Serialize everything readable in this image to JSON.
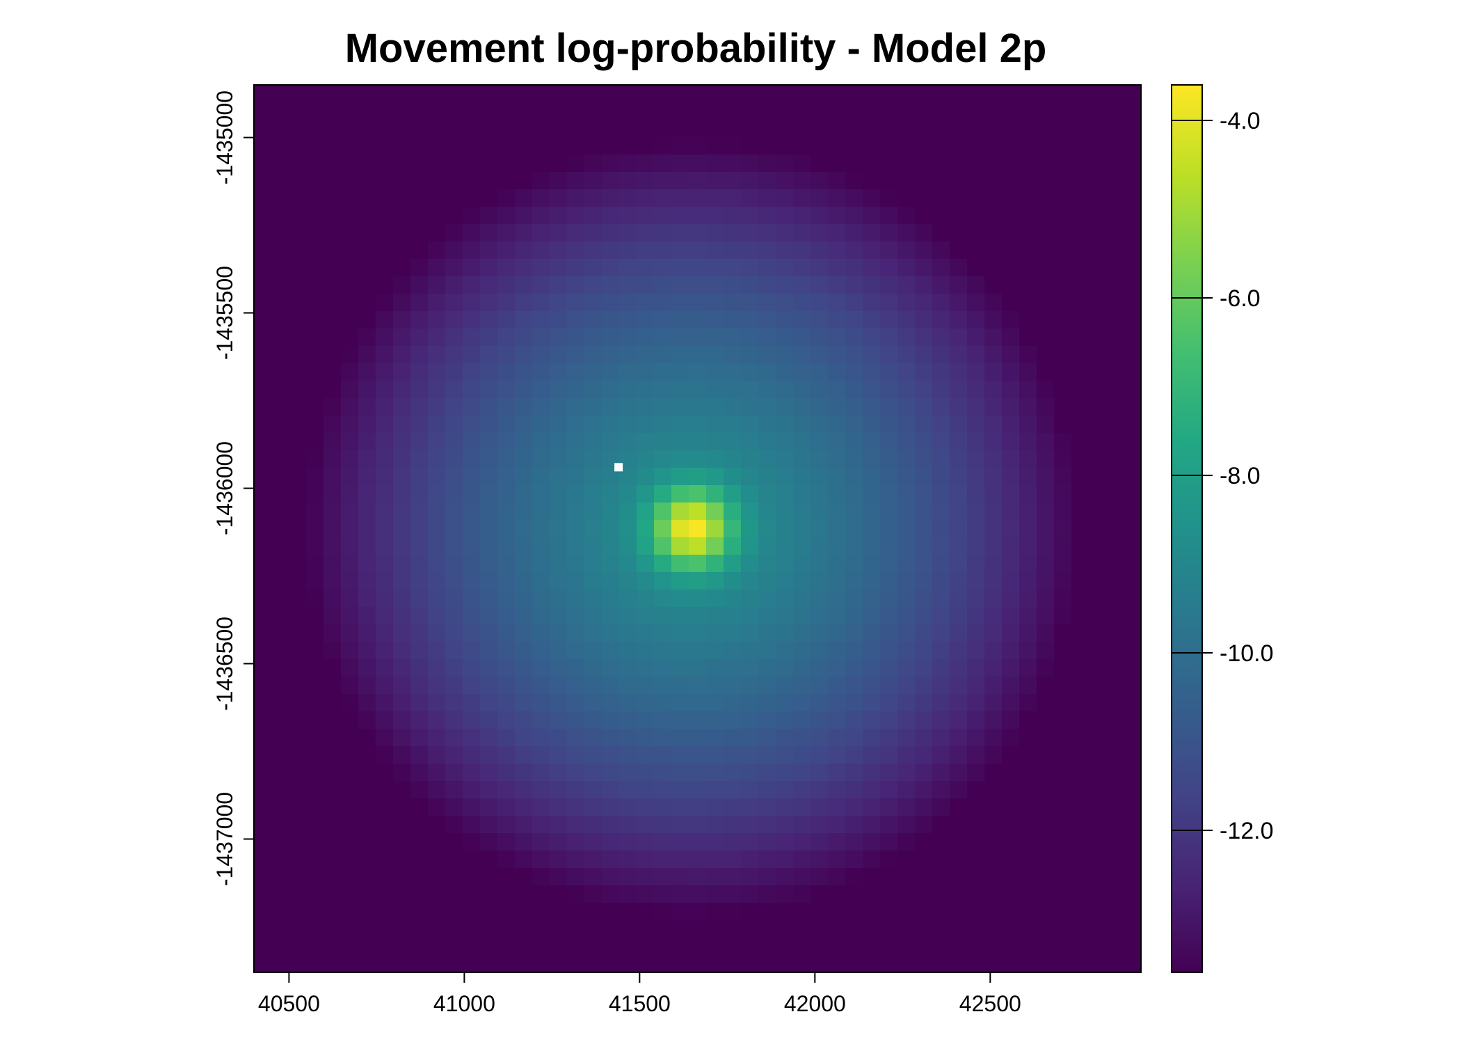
{
  "chart_data": {
    "type": "heatmap",
    "title": "Movement log-probability - Model 2p",
    "xlabel": "",
    "ylabel": "",
    "xlim": [
      40400,
      42930
    ],
    "ylim": [
      -1437380,
      -1434850
    ],
    "x_ticks": [
      40500,
      41000,
      41500,
      42000,
      42500
    ],
    "y_ticks": [
      -1435000,
      -1435500,
      -1436000,
      -1436500,
      -1437000
    ],
    "x_tick_labels": [
      "40500",
      "41000",
      "41500",
      "42000",
      "42500"
    ],
    "y_tick_labels": [
      "-1435000",
      "-1435500",
      "-1436000",
      "-1436500",
      "-1437000"
    ],
    "grid": false,
    "colormap": "viridis",
    "value_range": [
      -13.6,
      -3.6
    ],
    "colorbar": {
      "placement": "right",
      "ticks": [
        -4.0,
        -6.0,
        -8.0,
        -10.0,
        -12.0
      ],
      "tick_labels": [
        "-4.0",
        "-6.0",
        "-8.0",
        "-10.0",
        "-12.0"
      ]
    },
    "peak": {
      "x": 41650,
      "y": -1436115,
      "value": -3.6
    },
    "center_marker": {
      "x": 41440,
      "y": -1435940,
      "color": "#ffffff"
    },
    "field": {
      "center_value": -8.6,
      "falloff_scale_m": 1100,
      "exponent": 1.4,
      "min_value": -13.6,
      "peak_sigma_m": 80
    }
  }
}
